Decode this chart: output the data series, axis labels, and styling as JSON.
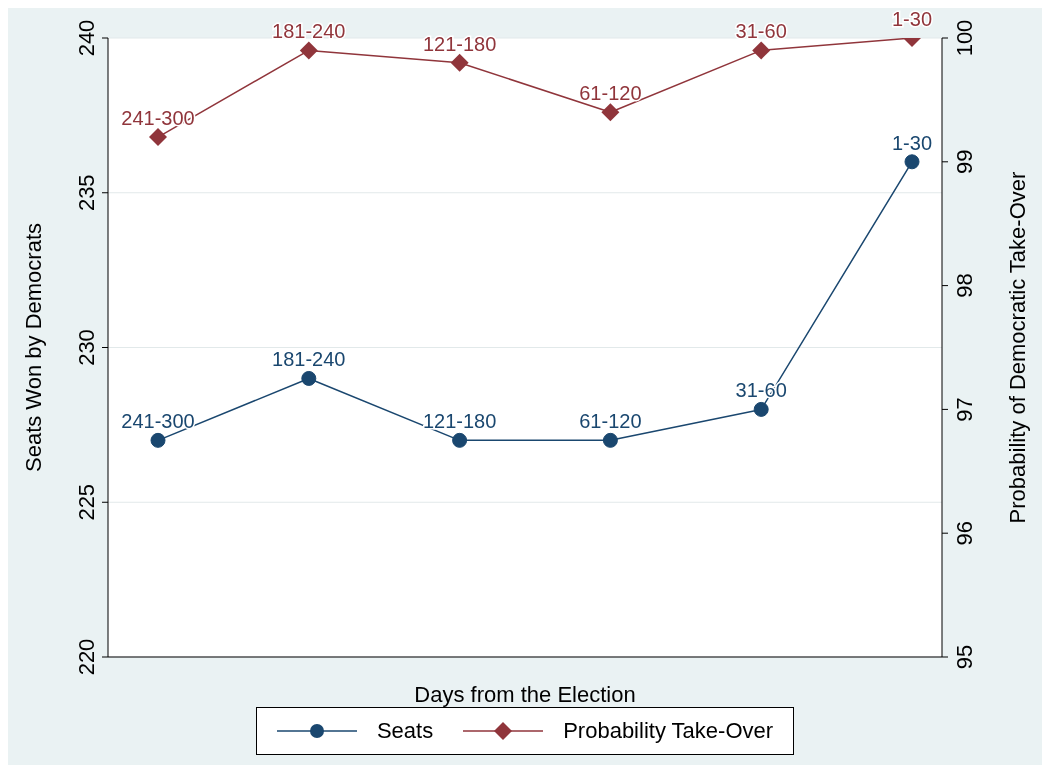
{
  "chart_data": {
    "type": "line",
    "xlabel": "Days from the Election",
    "ylabel": "Seats Won by Democrats",
    "y2label": "Probability of Democratic Take-Over",
    "categories": [
      null,
      null,
      null,
      null,
      null,
      null
    ],
    "series": [
      {
        "name": "Seats",
        "color": "#1a476f",
        "marker": "circle",
        "values": [
          227,
          229,
          227,
          227,
          228,
          236
        ],
        "value_labels": [
          "241-300",
          "181-240",
          "121-180",
          "61-120",
          "31-60",
          "1-30"
        ]
      },
      {
        "name": "Probability Take-Over",
        "color": "#90353b",
        "marker": "diamond",
        "axis": "y2",
        "values": [
          99.2,
          99.9,
          99.8,
          99.4,
          99.9,
          100
        ],
        "value_labels": [
          "241-300",
          "181-240",
          "121-180",
          "61-120",
          "31-60",
          "1-30"
        ]
      }
    ],
    "ylim": [
      220,
      240
    ],
    "yticks": [
      220,
      225,
      230,
      235,
      240
    ],
    "y2lim": [
      95,
      100
    ],
    "y2ticks": [
      95,
      96,
      97,
      98,
      99,
      100
    ],
    "grid": "y",
    "legend": "bottom"
  }
}
